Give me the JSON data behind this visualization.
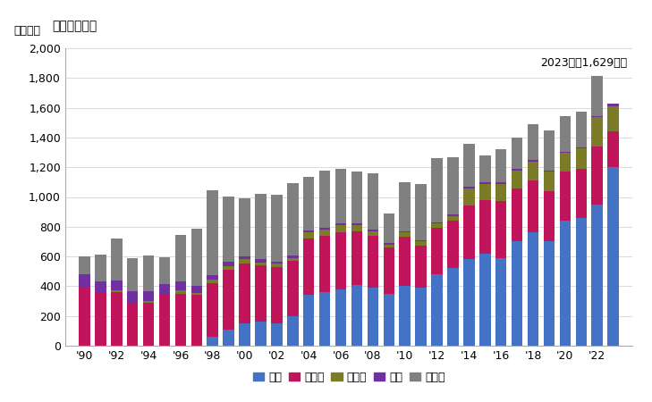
{
  "title": "輸入量の推移",
  "ylabel": "単位トン",
  "annotation": "2023年：1,629トン",
  "years": [
    1990,
    1991,
    1992,
    1993,
    1994,
    1995,
    1996,
    1997,
    1998,
    1999,
    2000,
    2001,
    2002,
    2003,
    2004,
    2005,
    2006,
    2007,
    2008,
    2009,
    2010,
    2011,
    2012,
    2013,
    2014,
    2015,
    2016,
    2017,
    2018,
    2019,
    2020,
    2021,
    2022,
    2023
  ],
  "xtick_labels": [
    "'90",
    "'92",
    "'94",
    "'96",
    "'98",
    "'00",
    "'02",
    "'04",
    "'06",
    "'08",
    "'10",
    "'12",
    "'14",
    "'16",
    "'18",
    "'20",
    "'22"
  ],
  "xtick_years": [
    1990,
    1992,
    1994,
    1996,
    1998,
    2000,
    2002,
    2004,
    2006,
    2008,
    2010,
    2012,
    2014,
    2016,
    2018,
    2020,
    2022
  ],
  "series": {
    "中国": [
      0,
      0,
      0,
      0,
      0,
      0,
      0,
      0,
      60,
      110,
      150,
      160,
      150,
      200,
      340,
      360,
      380,
      410,
      390,
      350,
      400,
      390,
      480,
      520,
      580,
      620,
      590,
      700,
      760,
      700,
      840,
      860,
      950,
      1200
    ],
    "スイス": [
      390,
      360,
      360,
      290,
      290,
      340,
      350,
      340,
      360,
      400,
      400,
      380,
      380,
      370,
      380,
      380,
      380,
      360,
      350,
      310,
      330,
      280,
      310,
      320,
      360,
      360,
      380,
      360,
      350,
      340,
      330,
      330,
      390,
      240
    ],
    "インド": [
      0,
      0,
      10,
      0,
      10,
      0,
      20,
      15,
      25,
      25,
      30,
      20,
      20,
      20,
      40,
      40,
      50,
      40,
      30,
      20,
      30,
      30,
      30,
      30,
      120,
      110,
      120,
      120,
      130,
      130,
      130,
      140,
      200,
      170
    ],
    "韓国": [
      90,
      75,
      70,
      75,
      65,
      75,
      65,
      50,
      30,
      30,
      20,
      20,
      15,
      15,
      15,
      10,
      10,
      10,
      10,
      10,
      10,
      10,
      10,
      10,
      10,
      10,
      10,
      10,
      10,
      5,
      5,
      5,
      5,
      15
    ],
    "その他": [
      120,
      175,
      280,
      225,
      240,
      180,
      310,
      380,
      570,
      440,
      390,
      440,
      450,
      490,
      360,
      390,
      370,
      350,
      380,
      200,
      330,
      380,
      430,
      390,
      290,
      180,
      220,
      210,
      240,
      270,
      240,
      240,
      270,
      0
    ]
  },
  "colors": {
    "中国": "#4472C4",
    "スイス": "#C0155A",
    "インド": "#7B7B28",
    "韓国": "#7030A0",
    "その他": "#808080"
  },
  "ylim": [
    0,
    2000
  ],
  "yticks": [
    0,
    200,
    400,
    600,
    800,
    1000,
    1200,
    1400,
    1600,
    1800,
    2000
  ],
  "background_color": "#FFFFFF",
  "plot_area_color": "#FFFFFF",
  "title_fontsize": 10,
  "label_fontsize": 9,
  "legend_fontsize": 9,
  "tick_fontsize": 9,
  "bar_width": 0.7
}
